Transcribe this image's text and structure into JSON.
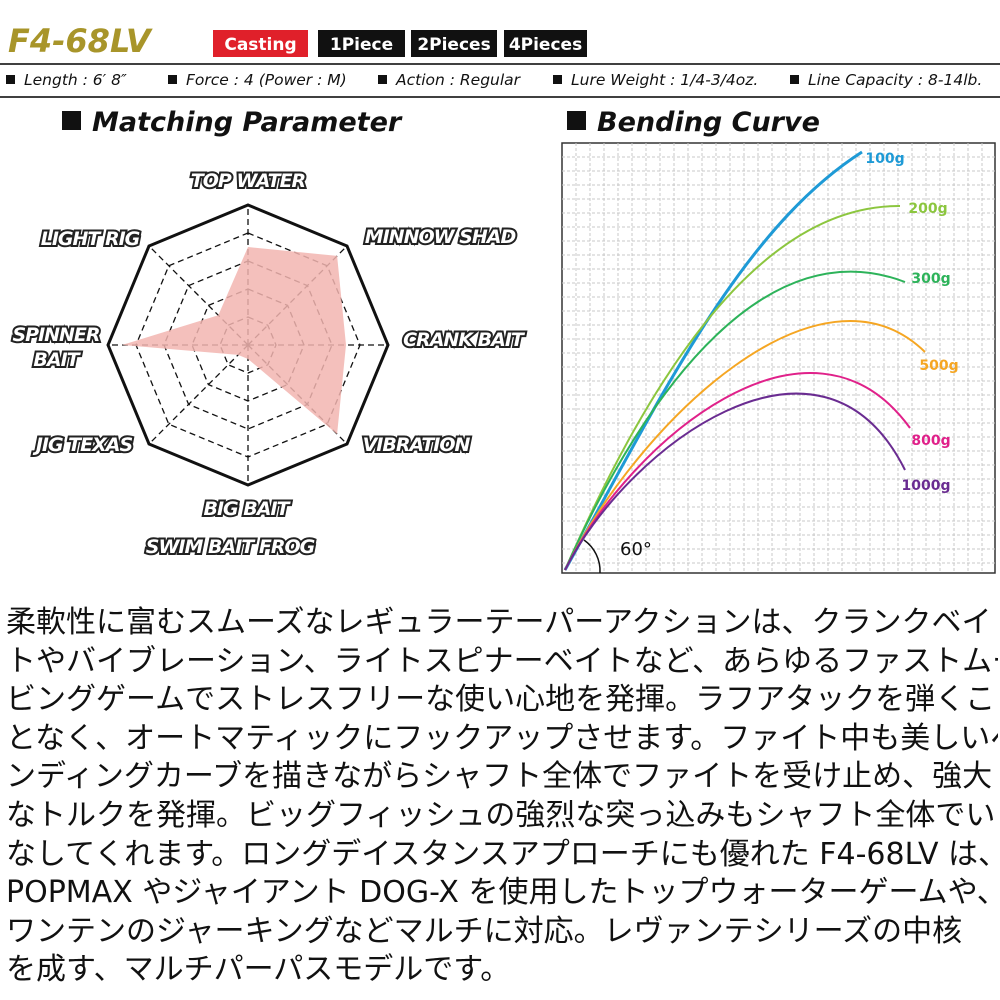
{
  "header": {
    "title": "F4-68LV",
    "tags": [
      "Casting",
      "1Piece",
      "2Pieces",
      "4Pieces"
    ],
    "specs": [
      "Length : 6′ 8″",
      "Force : 4 (Power : M)",
      "Action : Regular",
      "Lure Weight : 1/4-3/4oz.",
      "Line Capacity : 8-14lb."
    ]
  },
  "radar": {
    "title": "Matching Parameter",
    "axes": [
      [
        "TOP WATER"
      ],
      [
        "MINNOW SHAD"
      ],
      [
        "CRANK BAIT"
      ],
      [
        "VIBRATION"
      ],
      [
        "BIG BAIT",
        "SWIM BAIT FROG"
      ],
      [
        "JIG TEXAS"
      ],
      [
        "SPINNER",
        "BAIT"
      ],
      [
        "LIGHT RIG"
      ]
    ],
    "values": [
      3.5,
      4.5,
      3.5,
      4.5,
      0.5,
      0.5,
      4.5,
      1.5
    ],
    "rlim": [
      0,
      5
    ],
    "rticks": [
      1,
      2,
      3,
      4,
      5
    ],
    "color": "#f2b5b0"
  },
  "bending": {
    "title": "Bending Curve",
    "angle": "60°",
    "curves": [
      {
        "label": "100g",
        "color": "#1e9ad6"
      },
      {
        "label": "200g",
        "color": "#8cc63f"
      },
      {
        "label": "300g",
        "color": "#2db35a"
      },
      {
        "label": "500g",
        "color": "#f5a623"
      },
      {
        "label": "800g",
        "color": "#e0218a"
      },
      {
        "label": "1000g",
        "color": "#6a2c91"
      }
    ]
  },
  "description": {
    "lines": [
      "柔軟性に富むスムーズなレギュラーテーパーアクションは、クランクベイ",
      "トやバイブレーション、ライトスピナーベイトなど、あらゆるファストムー",
      "ビングゲームでストレスフリーな使い心地を発揮。ラフアタックを弾くこ",
      "となく、オートマティックにフックアップさせます。ファイト中も美しいペ",
      "ンディングカーブを描きながらシャフト全体でファイトを受け止め、強大",
      "なトルクを発揮。ビッグフィッシュの強烈な突っ込みもシャフト全体でい",
      "なしてくれます。ロングデイスタンスアプローチにも優れた F4-68LV は、",
      "POPMAX やジャイアント DOG-X を使用したトップウォーターゲームや、",
      "ワンテンのジャーキングなどマルチに対応。レヴァンテシリーズの中核",
      "を成す、マルチパーパスモデルです。"
    ]
  }
}
